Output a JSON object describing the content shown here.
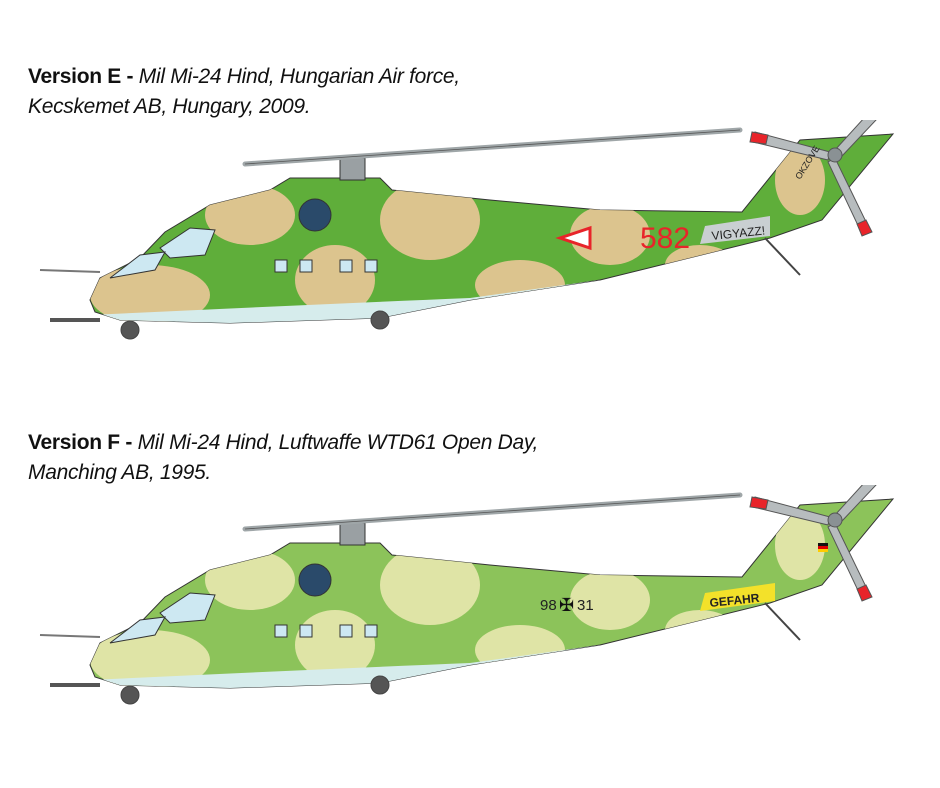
{
  "versions": [
    {
      "label": "Version E -",
      "line1": "Mil Mi-24 Hind, Hungarian Air force,",
      "line2": "Kecskemet AB, Hungary, 2009.",
      "markings": {
        "number": "582",
        "warning": "VIGYAZZ!",
        "tail_text": "OKZOVE"
      },
      "colors": {
        "base": "#5fae3a",
        "camo": "#dcc48e",
        "belly": "#d6ecec",
        "number": "#e8242a",
        "warning_bg": "#c9cfd2"
      }
    },
    {
      "label": "Version F -",
      "line1": "Mil Mi-24 Hind, Luftwaffe WTD61 Open Day,",
      "line2": "Manching AB, 1995.",
      "markings": {
        "number_left": "98",
        "number_right": "31",
        "warning": "GEFAHR"
      },
      "colors": {
        "base": "#8cc35a",
        "camo": "#dfe4a6",
        "belly": "#d6ecec",
        "number": "#222222",
        "warning_bg": "#f3e12a"
      }
    }
  ]
}
